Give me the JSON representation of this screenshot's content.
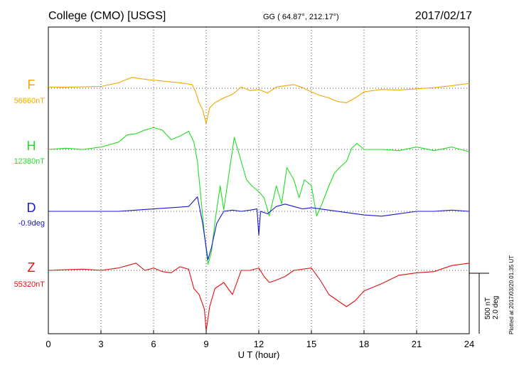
{
  "header": {
    "station": "College (CMO)  [USGS]",
    "coords": "GG ( 64.87°, 212.17°)",
    "date": "2017/02/17"
  },
  "side_note": "Plotted at 2017/03/20 01:35 UT",
  "scale_bar": {
    "line1": "500 nT",
    "line2": "2.0 deg",
    "value_nT": 500,
    "value_deg": 2.0
  },
  "chart_data": {
    "type": "line",
    "xlabel": "U T (hour)",
    "xlim": [
      0,
      24
    ],
    "xticks": [
      0,
      3,
      6,
      9,
      12,
      15,
      18,
      21,
      24
    ],
    "grid": true,
    "y_units": "nT offset from baseline (D in deg, 500 nT ≈ 2.0 deg)",
    "series": [
      {
        "name": "F",
        "baseline_label": "56660nT",
        "color": "#f0a800",
        "x": [
          0,
          1,
          2,
          3,
          4,
          4.5,
          4.8,
          5.2,
          5.7,
          6.2,
          6.8,
          7.5,
          8.2,
          8.4,
          8.6,
          8.8,
          9.0,
          9.2,
          9.5,
          10,
          10.5,
          11,
          11.5,
          12,
          12.5,
          13,
          13.5,
          14,
          14.5,
          15,
          15.5,
          16,
          16.5,
          17,
          17.5,
          18,
          19,
          20,
          21,
          22,
          23,
          24
        ],
        "y": [
          10,
          8,
          12,
          15,
          45,
          75,
          90,
          80,
          70,
          65,
          55,
          45,
          30,
          -30,
          -120,
          -180,
          -290,
          -160,
          -120,
          -80,
          -50,
          10,
          -20,
          -10,
          -40,
          10,
          20,
          30,
          5,
          -30,
          -60,
          -80,
          -110,
          -120,
          -80,
          -30,
          -10,
          -15,
          -5,
          5,
          20,
          40
        ]
      },
      {
        "name": "H",
        "baseline_label": "12380nT",
        "color": "#22dd22",
        "x": [
          0,
          1,
          2,
          3,
          4,
          4.5,
          5,
          5.5,
          6,
          6.5,
          7,
          7.5,
          8,
          8.3,
          8.5,
          8.7,
          8.9,
          9.1,
          9.3,
          9.5,
          9.8,
          10,
          10.3,
          10.6,
          11,
          11.3,
          11.6,
          12,
          12.3,
          12.6,
          13,
          13.3,
          13.6,
          14,
          14.3,
          14.6,
          15,
          15.3,
          15.6,
          16,
          16.3,
          16.6,
          17,
          17.3,
          17.6,
          18,
          19,
          20,
          21,
          22,
          23,
          24
        ],
        "y": [
          0,
          10,
          0,
          20,
          60,
          120,
          130,
          160,
          180,
          160,
          80,
          110,
          150,
          60,
          -100,
          -400,
          -700,
          -950,
          -850,
          -600,
          -300,
          -500,
          -200,
          100,
          -100,
          -250,
          -300,
          -350,
          -400,
          -550,
          -300,
          -450,
          -150,
          -250,
          -400,
          -250,
          -300,
          -550,
          -450,
          -300,
          -200,
          -150,
          -100,
          10,
          50,
          0,
          0,
          -10,
          20,
          -10,
          20,
          -20
        ]
      },
      {
        "name": "D",
        "baseline_label": "-0.9deg",
        "color": "#1818cc",
        "x": [
          0,
          1,
          2,
          3,
          4,
          5,
          6,
          7,
          8,
          8.5,
          8.8,
          9.0,
          9.1,
          9.3,
          9.6,
          10,
          10.5,
          11,
          11.5,
          11.9,
          12.0,
          12.1,
          12.5,
          13,
          13.5,
          14,
          14.5,
          15,
          15.5,
          16,
          17,
          18,
          19,
          20,
          21,
          22,
          23,
          24
        ],
        "y": [
          0,
          0,
          0,
          0,
          0,
          10,
          20,
          30,
          40,
          120,
          -100,
          -300,
          -400,
          -300,
          -100,
          0,
          10,
          0,
          10,
          20,
          -200,
          0,
          -20,
          40,
          60,
          40,
          20,
          30,
          20,
          10,
          -10,
          -30,
          -40,
          -20,
          0,
          0,
          10,
          0
        ]
      },
      {
        "name": "Z",
        "baseline_label": "55320nT",
        "color": "#e01010",
        "x": [
          0,
          1,
          2,
          3,
          4,
          5,
          5.5,
          6,
          6.5,
          7,
          7.5,
          8,
          8.3,
          8.6,
          8.9,
          9.0,
          9.2,
          9.5,
          10,
          10.5,
          11,
          11.5,
          12,
          12.3,
          12.6,
          13,
          13.5,
          14,
          15,
          15.5,
          16,
          16.5,
          17,
          17.5,
          18,
          19,
          20,
          21,
          22,
          23,
          24
        ],
        "y": [
          0,
          5,
          10,
          0,
          20,
          60,
          0,
          20,
          -10,
          -20,
          30,
          10,
          -150,
          -200,
          -320,
          -500,
          -300,
          -150,
          -100,
          -200,
          0,
          0,
          20,
          -50,
          -100,
          -80,
          -50,
          0,
          20,
          -80,
          -200,
          -250,
          -300,
          -250,
          -170,
          -110,
          -40,
          -20,
          -10,
          40,
          60
        ]
      }
    ]
  }
}
